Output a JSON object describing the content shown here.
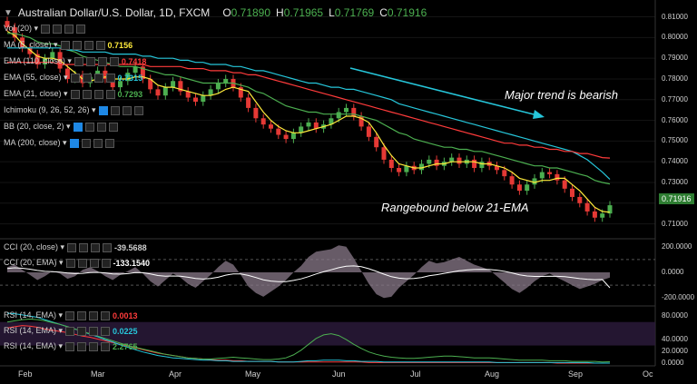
{
  "header": {
    "title": "Australian Dollar/U.S. Dollar, 1D, FXCM",
    "o_label": "O",
    "o": "0.71890",
    "h_label": "H",
    "h": "0.71965",
    "l_label": "L",
    "l": "0.71769",
    "c_label": "C",
    "c": "0.71916"
  },
  "indicators": [
    {
      "label": "Vol (20)",
      "value": "",
      "color": "#cfcfcf"
    },
    {
      "label": "MA (5, close)",
      "value": "0.7156",
      "color": "#ffeb3b"
    },
    {
      "label": "EMA (110, close)",
      "value": "0.7418",
      "color": "#ff3b3b"
    },
    {
      "label": "EMA (55, close)",
      "value": "0.7315",
      "color": "#26c6da"
    },
    {
      "label": "EMA (21, close)",
      "value": "0.7293",
      "color": "#4caf50"
    },
    {
      "label": "Ichimoku (9, 26, 52, 26)",
      "value": "",
      "color": "#cfcfcf"
    },
    {
      "label": "BB (20, close, 2)",
      "value": "",
      "color": "#cfcfcf"
    },
    {
      "label": "MA (200, close)",
      "value": "",
      "color": "#cfcfcf"
    }
  ],
  "cci_labels": [
    {
      "label": "CCI (20, close)",
      "value": "-39.5688",
      "color": "#cfcfcf"
    },
    {
      "label": "CCI (20, EMA)",
      "value": "-133.1540",
      "color": "#ffffff"
    }
  ],
  "rsi_labels": [
    {
      "label": "RSI (14, EMA)",
      "value": "0.0013",
      "color": "#ff3b3b"
    },
    {
      "label": "RSI (14, EMA)",
      "value": "0.0225",
      "color": "#26c6da"
    },
    {
      "label": "RSI (14, EMA)",
      "value": "2.2765",
      "color": "#4caf50"
    }
  ],
  "annotations": {
    "trend": "Major trend is bearish",
    "range": "Rangebound below 21-EMA"
  },
  "last_price": "0.71916",
  "chart_data": [
    {
      "type": "candlestick",
      "title": "Australian Dollar/U.S. Dollar, 1D, FXCM",
      "x_ticks": [
        "Feb",
        "Mar",
        "Apr",
        "May",
        "Jun",
        "Jul",
        "Aug",
        "Sep",
        "Oc"
      ],
      "y_ticks": [
        "0.81000",
        "0.80000",
        "0.79000",
        "0.78000",
        "0.77000",
        "0.76000",
        "0.75000",
        "0.74000",
        "0.73000",
        "0.71000"
      ],
      "ylim": [
        0.705,
        0.812
      ],
      "closes": [
        0.805,
        0.8,
        0.795,
        0.792,
        0.787,
        0.79,
        0.793,
        0.785,
        0.78,
        0.782,
        0.778,
        0.781,
        0.784,
        0.78,
        0.776,
        0.779,
        0.783,
        0.786,
        0.78,
        0.775,
        0.772,
        0.776,
        0.779,
        0.774,
        0.771,
        0.769,
        0.772,
        0.775,
        0.778,
        0.78,
        0.776,
        0.771,
        0.766,
        0.761,
        0.758,
        0.756,
        0.753,
        0.751,
        0.754,
        0.757,
        0.759,
        0.756,
        0.758,
        0.761,
        0.764,
        0.766,
        0.762,
        0.757,
        0.752,
        0.747,
        0.741,
        0.737,
        0.735,
        0.738,
        0.736,
        0.739,
        0.741,
        0.738,
        0.74,
        0.742,
        0.739,
        0.741,
        0.737,
        0.74,
        0.738,
        0.736,
        0.733,
        0.729,
        0.726,
        0.729,
        0.732,
        0.735,
        0.734,
        0.731,
        0.727,
        0.723,
        0.72,
        0.716,
        0.713,
        0.715,
        0.719
      ],
      "series": [
        {
          "name": "MA (5, close)",
          "color": "#ffeb3b",
          "values": [
            0.803,
            0.801,
            0.797,
            0.794,
            0.791,
            0.79,
            0.79,
            0.789,
            0.786,
            0.783,
            0.78,
            0.779,
            0.78,
            0.781,
            0.78,
            0.78,
            0.78,
            0.781,
            0.781,
            0.78,
            0.777,
            0.776,
            0.776,
            0.775,
            0.774,
            0.773,
            0.772,
            0.772,
            0.773,
            0.775,
            0.776,
            0.775,
            0.774,
            0.769,
            0.764,
            0.76,
            0.757,
            0.755,
            0.754,
            0.754,
            0.755,
            0.756,
            0.757,
            0.758,
            0.76,
            0.762,
            0.762,
            0.761,
            0.759,
            0.754,
            0.748,
            0.743,
            0.739,
            0.738,
            0.737,
            0.737,
            0.738,
            0.739,
            0.739,
            0.74,
            0.74,
            0.74,
            0.74,
            0.739,
            0.739,
            0.738,
            0.737,
            0.735,
            0.732,
            0.731,
            0.73,
            0.731,
            0.731,
            0.732,
            0.732,
            0.729,
            0.726,
            0.722,
            0.718,
            0.716,
            0.7156
          ]
        },
        {
          "name": "EMA (21, close)",
          "color": "#4caf50",
          "values": [
            0.802,
            0.802,
            0.801,
            0.8,
            0.798,
            0.797,
            0.797,
            0.796,
            0.794,
            0.793,
            0.791,
            0.79,
            0.789,
            0.788,
            0.787,
            0.786,
            0.786,
            0.786,
            0.785,
            0.784,
            0.783,
            0.782,
            0.782,
            0.781,
            0.78,
            0.779,
            0.778,
            0.778,
            0.778,
            0.778,
            0.778,
            0.777,
            0.776,
            0.774,
            0.773,
            0.771,
            0.769,
            0.767,
            0.766,
            0.765,
            0.764,
            0.764,
            0.763,
            0.763,
            0.763,
            0.763,
            0.763,
            0.762,
            0.761,
            0.76,
            0.758,
            0.756,
            0.754,
            0.753,
            0.751,
            0.75,
            0.749,
            0.748,
            0.747,
            0.747,
            0.746,
            0.746,
            0.745,
            0.745,
            0.744,
            0.743,
            0.742,
            0.741,
            0.74,
            0.739,
            0.738,
            0.738,
            0.737,
            0.737,
            0.736,
            0.735,
            0.734,
            0.733,
            0.731,
            0.73,
            0.7293
          ]
        },
        {
          "name": "EMA (55, close)",
          "color": "#26c6da",
          "values": [
            0.795,
            0.795,
            0.795,
            0.795,
            0.795,
            0.795,
            0.795,
            0.795,
            0.794,
            0.794,
            0.793,
            0.793,
            0.793,
            0.793,
            0.792,
            0.792,
            0.792,
            0.792,
            0.791,
            0.791,
            0.79,
            0.79,
            0.79,
            0.789,
            0.789,
            0.788,
            0.788,
            0.787,
            0.787,
            0.787,
            0.786,
            0.786,
            0.785,
            0.784,
            0.784,
            0.783,
            0.782,
            0.781,
            0.78,
            0.779,
            0.778,
            0.778,
            0.777,
            0.776,
            0.776,
            0.775,
            0.775,
            0.774,
            0.773,
            0.772,
            0.771,
            0.77,
            0.768,
            0.767,
            0.766,
            0.765,
            0.764,
            0.763,
            0.762,
            0.761,
            0.76,
            0.759,
            0.758,
            0.757,
            0.756,
            0.755,
            0.754,
            0.753,
            0.752,
            0.751,
            0.75,
            0.749,
            0.748,
            0.747,
            0.746,
            0.745,
            0.743,
            0.741,
            0.738,
            0.735,
            0.7315
          ]
        },
        {
          "name": "EMA (110, close)",
          "color": "#ff3b3b",
          "values": [
            0.788,
            0.788,
            0.788,
            0.788,
            0.788,
            0.788,
            0.788,
            0.787,
            0.787,
            0.787,
            0.787,
            0.787,
            0.787,
            0.787,
            0.787,
            0.787,
            0.787,
            0.787,
            0.787,
            0.786,
            0.786,
            0.786,
            0.786,
            0.786,
            0.785,
            0.785,
            0.785,
            0.784,
            0.784,
            0.784,
            0.783,
            0.783,
            0.782,
            0.782,
            0.781,
            0.78,
            0.779,
            0.778,
            0.777,
            0.776,
            0.775,
            0.774,
            0.773,
            0.772,
            0.771,
            0.77,
            0.769,
            0.768,
            0.767,
            0.766,
            0.765,
            0.764,
            0.763,
            0.762,
            0.761,
            0.76,
            0.759,
            0.758,
            0.757,
            0.756,
            0.755,
            0.754,
            0.753,
            0.752,
            0.751,
            0.75,
            0.749,
            0.749,
            0.748,
            0.748,
            0.747,
            0.747,
            0.746,
            0.746,
            0.745,
            0.745,
            0.744,
            0.744,
            0.743,
            0.742,
            0.7418
          ]
        }
      ]
    },
    {
      "type": "area",
      "title": "CCI (20, close)",
      "y_ticks": [
        "200.0000",
        "0.0000",
        "-200.0000"
      ],
      "ylim": [
        -240,
        240
      ],
      "series": [
        {
          "name": "CCI (20, close)",
          "color": "#8a7a8a",
          "values": [
            40,
            60,
            20,
            -20,
            -60,
            -30,
            10,
            -10,
            -50,
            -30,
            20,
            40,
            10,
            -30,
            -60,
            -20,
            10,
            40,
            -10,
            -70,
            -110,
            -60,
            -10,
            -40,
            -90,
            -120,
            -70,
            -20,
            40,
            90,
            60,
            -20,
            -110,
            -160,
            -190,
            -150,
            -110,
            -60,
            0,
            50,
            120,
            160,
            170,
            180,
            210,
            200,
            110,
            10,
            -90,
            -170,
            -200,
            -190,
            -120,
            -70,
            -20,
            40,
            90,
            70,
            80,
            100,
            120,
            90,
            60,
            40,
            20,
            -30,
            -80,
            -130,
            -160,
            -120,
            -70,
            -30,
            -10,
            -40,
            -70,
            -100,
            -130,
            -110,
            -90,
            -60,
            -40
          ]
        },
        {
          "name": "CCI (20, EMA)",
          "color": "#ffffff",
          "values": [
            30,
            35,
            32,
            25,
            15,
            8,
            5,
            2,
            -5,
            -10,
            -8,
            -2,
            0,
            -4,
            -12,
            -14,
            -10,
            -2,
            -3,
            -12,
            -25,
            -30,
            -28,
            -30,
            -38,
            -48,
            -52,
            -48,
            -38,
            -22,
            -12,
            -13,
            -24,
            -40,
            -58,
            -68,
            -73,
            -72,
            -63,
            -51,
            -33,
            -13,
            4,
            20,
            36,
            48,
            50,
            44,
            28,
            8,
            -14,
            -34,
            -45,
            -50,
            -48,
            -40,
            -27,
            -18,
            -8,
            2,
            12,
            18,
            22,
            23,
            22,
            17,
            8,
            -4,
            -19,
            -28,
            -32,
            -32,
            -30,
            -31,
            -34,
            -41,
            -49,
            -54,
            -57,
            -56,
            -133.154
          ]
        }
      ]
    },
    {
      "type": "line",
      "title": "RSI (14, EMA)",
      "y_ticks": [
        "80.0000",
        "40.0000",
        "20.0000",
        "0.0000"
      ],
      "ylim": [
        0,
        85
      ],
      "series": [
        {
          "name": "RSI (14, EMA)",
          "color": "#ff3b3b",
          "values": [
            60,
            62,
            64,
            63,
            61,
            58,
            56,
            54,
            52,
            49,
            46,
            44,
            41,
            38,
            35,
            32,
            29,
            26,
            23,
            20,
            17,
            15,
            13,
            11,
            9,
            8,
            7,
            6,
            5,
            5,
            4,
            4,
            3,
            3,
            3,
            3,
            2,
            2,
            2,
            2,
            2,
            2,
            2,
            2,
            2,
            2,
            2,
            2,
            1,
            1,
            1,
            1,
            1,
            1,
            1,
            1,
            1,
            1,
            1,
            1,
            1,
            1,
            1,
            1,
            1,
            1,
            1,
            1,
            1,
            1,
            1,
            1,
            1,
            0,
            0,
            0,
            0,
            0,
            0,
            0,
            0.0013
          ]
        },
        {
          "name": "RSI (14, EMA)",
          "color": "#26c6da",
          "values": [
            85,
            84,
            82,
            80,
            78,
            74,
            70,
            66,
            62,
            58,
            54,
            49,
            45,
            40,
            36,
            31,
            27,
            23,
            19,
            16,
            13,
            11,
            9,
            8,
            7,
            6,
            5,
            5,
            4,
            4,
            3,
            3,
            3,
            3,
            3,
            3,
            2,
            2,
            2,
            3,
            4,
            4,
            5,
            5,
            5,
            4,
            4,
            3,
            3,
            3,
            2,
            2,
            2,
            2,
            2,
            2,
            2,
            2,
            2,
            2,
            2,
            2,
            2,
            2,
            2,
            1,
            1,
            1,
            1,
            1,
            1,
            1,
            1,
            1,
            1,
            1,
            1,
            1,
            0,
            0,
            0.0225
          ]
        },
        {
          "name": "RSI (14, EMA)",
          "color": "#4caf50",
          "values": [
            70,
            72,
            74,
            75,
            74,
            72,
            69,
            66,
            62,
            58,
            54,
            50,
            46,
            42,
            38,
            34,
            30,
            27,
            24,
            21,
            18,
            15,
            13,
            11,
            9,
            8,
            7,
            7,
            8,
            9,
            10,
            9,
            8,
            7,
            6,
            6,
            7,
            9,
            14,
            22,
            32,
            42,
            48,
            50,
            47,
            40,
            32,
            25,
            19,
            15,
            12,
            10,
            9,
            8,
            8,
            9,
            10,
            11,
            12,
            12,
            11,
            10,
            9,
            9,
            9,
            8,
            7,
            6,
            5,
            5,
            5,
            5,
            4,
            4,
            4,
            3,
            3,
            3,
            3,
            2,
            2.2765
          ]
        }
      ]
    }
  ]
}
